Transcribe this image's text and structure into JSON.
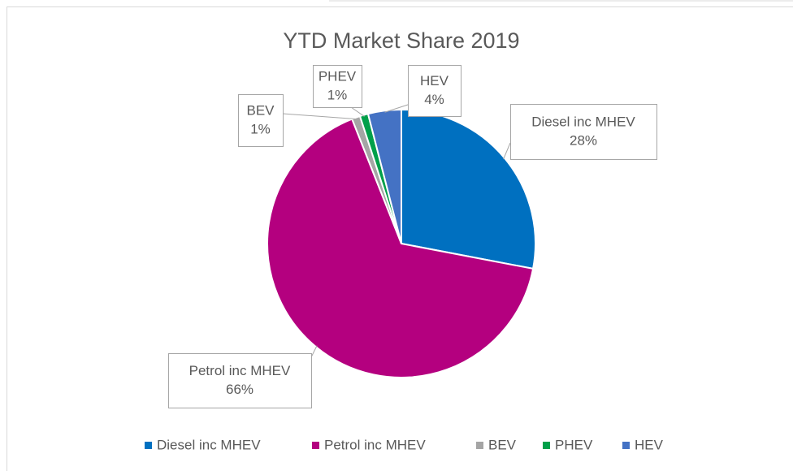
{
  "chart_data": {
    "type": "pie",
    "title": "YTD Market Share 2019",
    "categories": [
      "Diesel inc MHEV",
      "Petrol inc MHEV",
      "BEV",
      "PHEV",
      "HEV"
    ],
    "values": [
      28,
      66,
      1,
      1,
      4
    ],
    "value_labels": [
      "28%",
      "66%",
      "1%",
      "1%",
      "4%"
    ],
    "colors": [
      "#0070c0",
      "#b4007f",
      "#a5a5a5",
      "#00a04a",
      "#4472c4"
    ],
    "legend": "bottom"
  }
}
